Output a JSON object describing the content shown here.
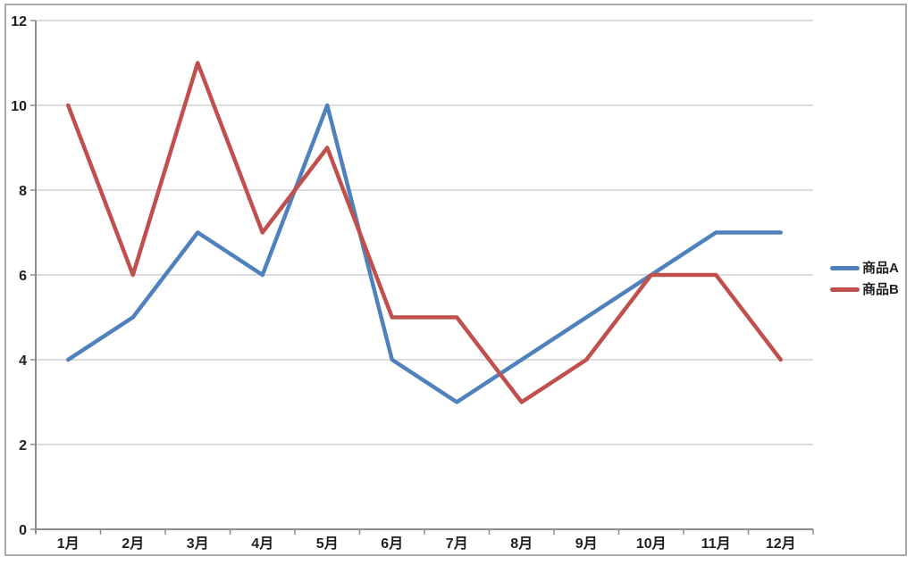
{
  "chart_data": {
    "type": "line",
    "title": "",
    "categories": [
      "1月",
      "2月",
      "3月",
      "4月",
      "5月",
      "6月",
      "7月",
      "8月",
      "9月",
      "10月",
      "11月",
      "12月"
    ],
    "series": [
      {
        "name": "商品A",
        "color": "#4F81BD",
        "values": [
          4,
          5,
          7,
          6,
          10,
          4,
          3,
          4,
          5,
          6,
          7,
          7
        ]
      },
      {
        "name": "商品B",
        "color": "#C0504D",
        "values": [
          10,
          6,
          11,
          7,
          9,
          5,
          5,
          3,
          4,
          6,
          6,
          4
        ]
      }
    ],
    "ylim": [
      0,
      12
    ],
    "yticks": [
      0,
      2,
      4,
      6,
      8,
      10,
      12
    ],
    "grid": "horizontal",
    "legend_position": "right",
    "colors": {
      "gridline": "#c6c6c6",
      "axis": "#8c8c8c",
      "frame_border": "#a9a9a9",
      "label_text": "#1f1f1f"
    }
  }
}
